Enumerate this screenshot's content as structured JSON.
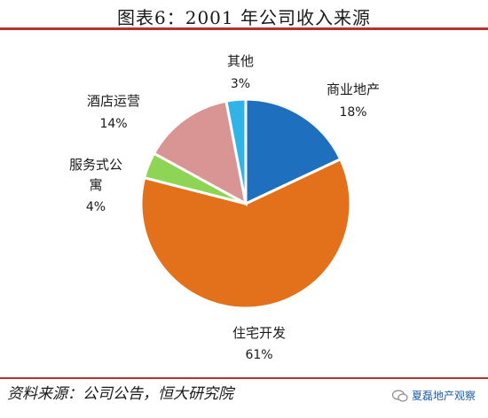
{
  "chart_data": {
    "type": "pie",
    "title": "图表6：2001 年公司收入来源",
    "slices": [
      {
        "label": "商业地产",
        "value": 18,
        "pct_label": "18%",
        "color": "#1f6fbf"
      },
      {
        "label": "住宅开发",
        "value": 61,
        "pct_label": "61%",
        "color": "#e3701a"
      },
      {
        "label": "服务式公寓",
        "value": 4,
        "pct_label": "4%",
        "color": "#8ed455"
      },
      {
        "label": "酒店运营",
        "value": 14,
        "pct_label": "14%",
        "color": "#d99593"
      },
      {
        "label": "其他",
        "value": 3,
        "pct_label": "3%",
        "color": "#31b3e8"
      }
    ],
    "start": "12 o'clock",
    "direction": "clockwise"
  },
  "footer": {
    "source": "资料来源：公司公告，恒大研究院",
    "watermark": "夏磊地产观察"
  }
}
